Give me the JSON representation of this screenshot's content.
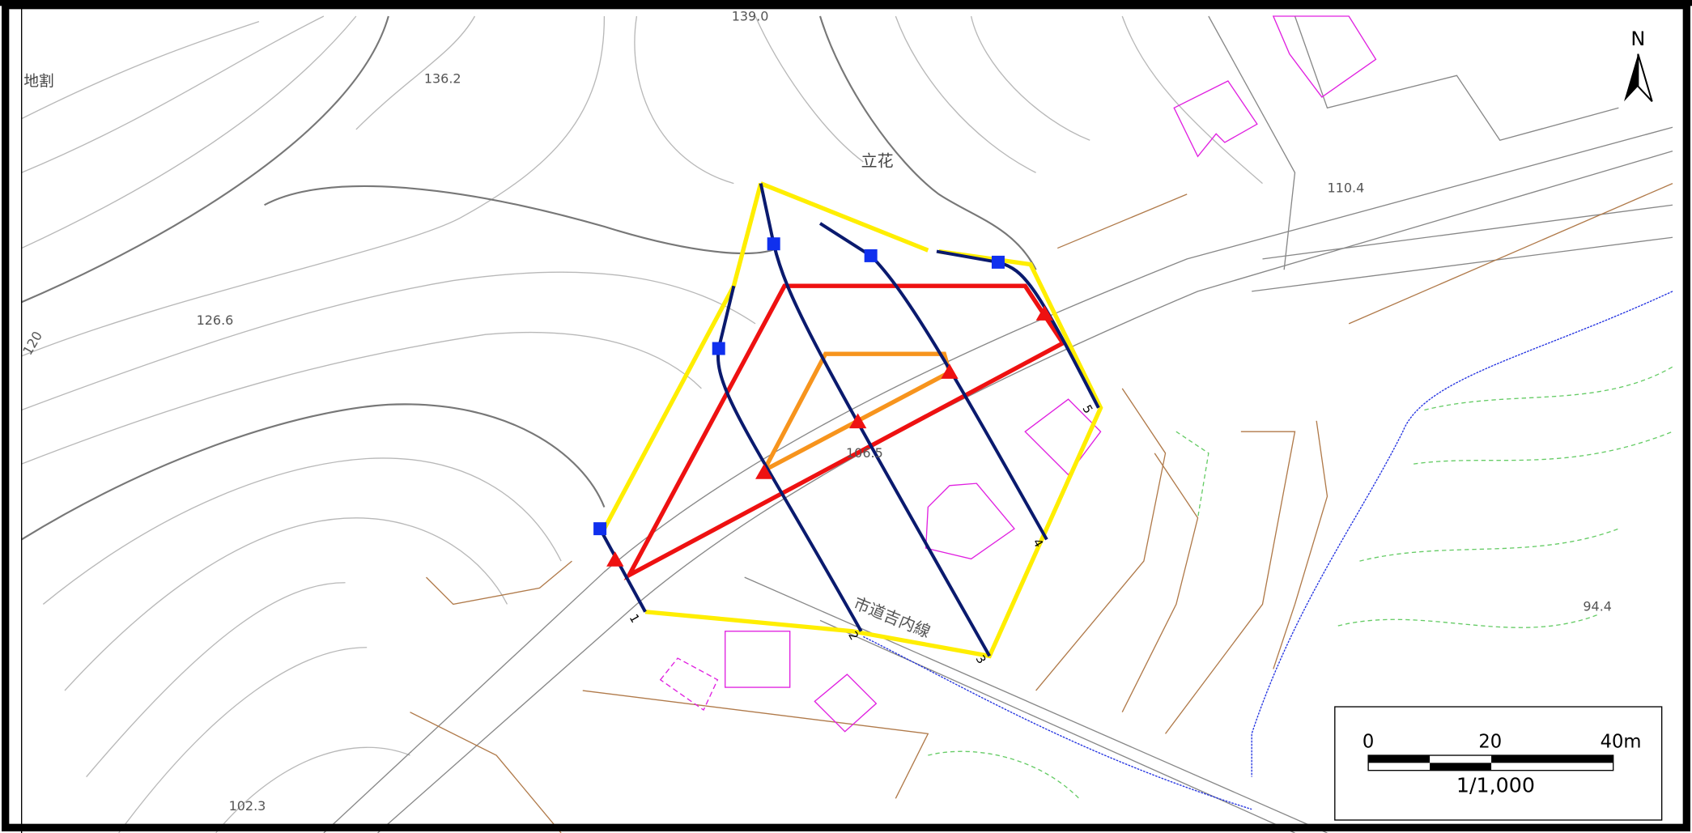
{
  "map": {
    "north_label": "N",
    "place_labels": [
      "地割",
      "立花"
    ],
    "elevation_labels": [
      "139.0",
      "136.2",
      "126.6",
      "120",
      "110.4",
      "106.5",
      "94.4",
      "102.3"
    ],
    "road_label": "市道吉内線",
    "line_numbers": [
      "1",
      "2",
      "3",
      "4",
      "5"
    ],
    "scale_bar": {
      "ticks": [
        "0",
        "20",
        "40m"
      ],
      "ratio": "1/1,000"
    }
  }
}
